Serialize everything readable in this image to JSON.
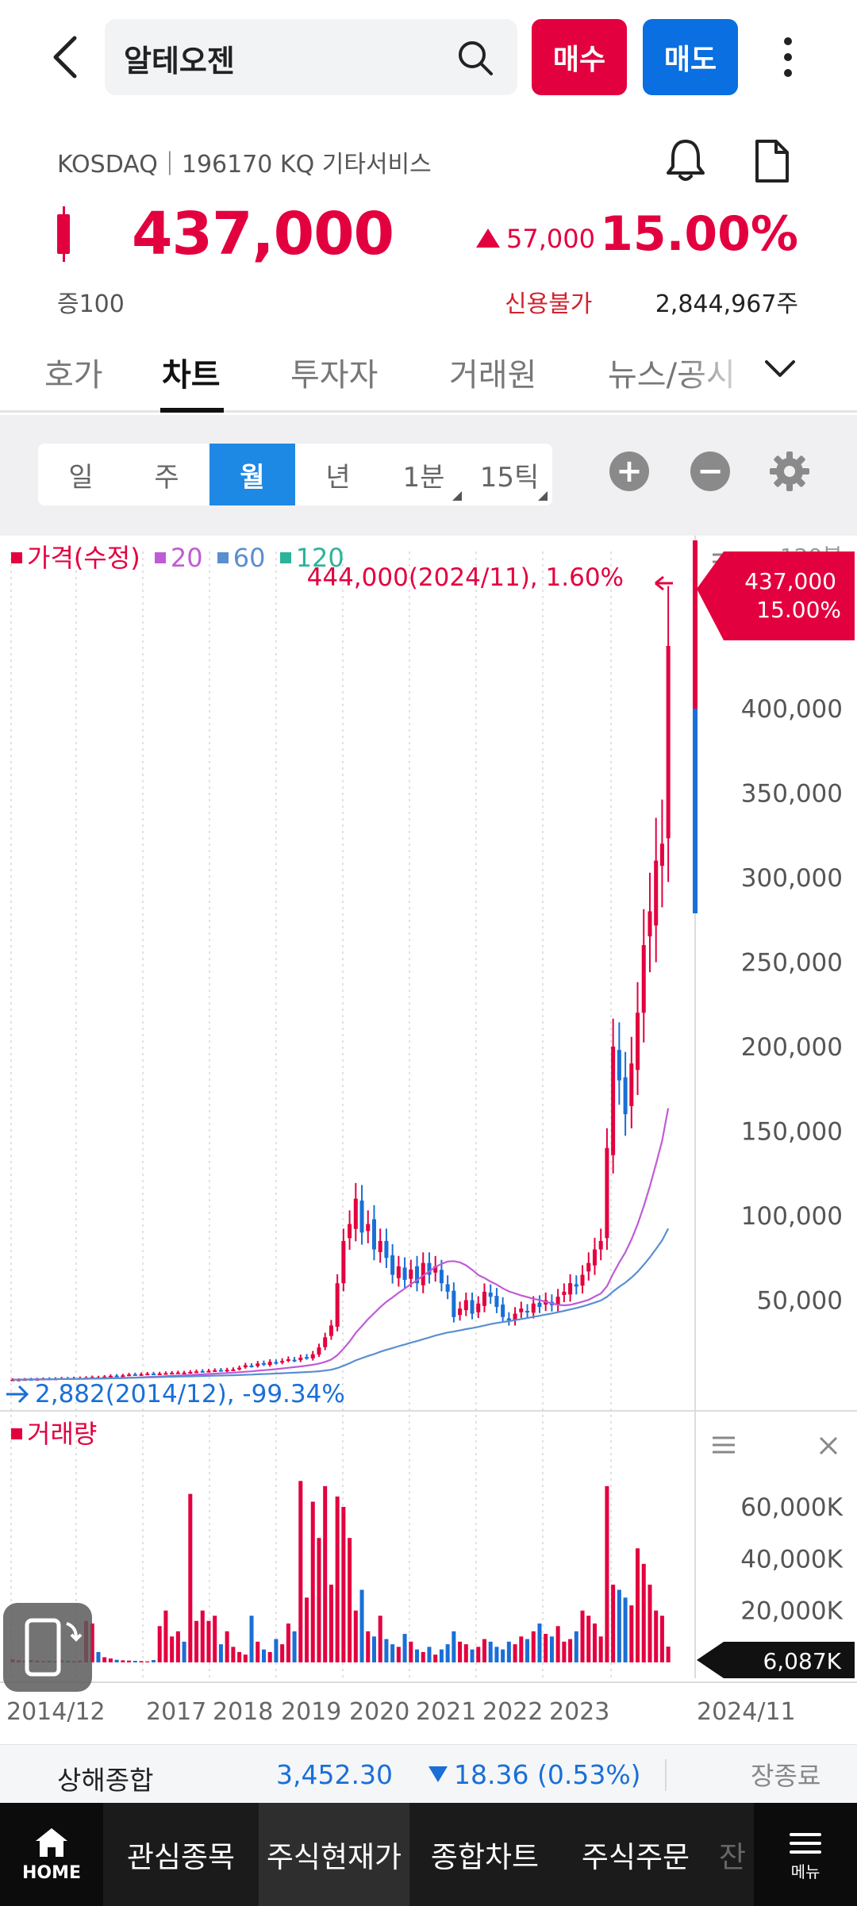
{
  "header": {
    "stock_name": "알테오젠",
    "buy_label": "매수",
    "sell_label": "매도"
  },
  "stock": {
    "market_line": "KOSDAQ｜196170 KQ 기타서비스",
    "price": "437,000",
    "change": "57,000",
    "change_pct": "15.00%",
    "margin": "증100",
    "credit": "신용불가",
    "volume": "2,844,967주",
    "colors": {
      "up": "#e3003f",
      "down": "#1a6fd6"
    }
  },
  "tabs": [
    {
      "label": "호가"
    },
    {
      "label": "차트"
    },
    {
      "label": "투자자"
    },
    {
      "label": "거래원"
    },
    {
      "label": "뉴스/공시"
    }
  ],
  "chart_toolbar": {
    "periods": [
      "일",
      "주",
      "월",
      "년",
      "1분",
      "15틱"
    ],
    "active_period": "월",
    "zoom_in": "+",
    "zoom_out": "−"
  },
  "chart_data": {
    "type": "candlestick",
    "period": "monthly",
    "legend": {
      "price": "가격(수정)",
      "ma20": "20",
      "ma60": "60",
      "ma120": "120",
      "colors": {
        "price": "#e3003f",
        "ma20": "#c05bd6",
        "ma60": "#5a8fd0",
        "ma120": "#2db39a"
      }
    },
    "bars_label": "120봉",
    "volume_label": "거래량",
    "high_annotation": "444,000(2024/11), 1.60%",
    "low_annotation": "2,882(2014/12), -99.34%",
    "current_price_label": "437,000",
    "current_pct_label": "15.00%",
    "current_volume_label": "6,087K",
    "price_axis": [
      "400,000",
      "350,000",
      "300,000",
      "250,000",
      "200,000",
      "150,000",
      "100,000",
      "50,000"
    ],
    "price_axis_values": [
      400000,
      350000,
      300000,
      250000,
      200000,
      150000,
      100000,
      50000
    ],
    "volume_axis": [
      "60,000K",
      "40,000K",
      "20,000K"
    ],
    "volume_axis_values": [
      60000,
      40000,
      20000
    ],
    "x_labels": [
      "2014/12",
      "2017",
      "2018",
      "2019",
      "2020",
      "2021",
      "2022",
      "2023",
      "2024/11"
    ],
    "ylim": [
      0,
      460000
    ],
    "volume_ylim": [
      0,
      75000
    ],
    "price_path": [
      3000,
      3000,
      3200,
      3100,
      3300,
      3500,
      3400,
      3600,
      3800,
      3700,
      3900,
      4000,
      4200,
      4500,
      4400,
      4800,
      5200,
      5000,
      5500,
      6000,
      5800,
      6200,
      6500,
      6300,
      6600,
      6800,
      7000,
      7200,
      7100,
      7500,
      7800,
      8000,
      8200,
      8500,
      8300,
      8800,
      9000,
      10000,
      11500,
      11000,
      12500,
      12000,
      13500,
      13000,
      14000,
      15000,
      14500,
      16000,
      16000,
      18000,
      22000,
      28000,
      35000,
      60000,
      85000,
      95000,
      110000,
      90000,
      95000,
      80000,
      85000,
      75000,
      65000,
      70000,
      62000,
      68000,
      60000,
      72000,
      65000,
      70000,
      60000,
      55000,
      40000,
      45000,
      50000,
      42000,
      48000,
      55000,
      52000,
      46000,
      40000,
      38000,
      42000,
      45000,
      43000,
      48000,
      46000,
      50000,
      47000,
      52000,
      55000,
      60000,
      58000,
      65000,
      72000,
      80000,
      85000,
      140000,
      200000,
      180000,
      160000,
      190000,
      220000,
      260000,
      280000,
      310000,
      320000,
      437000
    ],
    "volume_path": [
      1200,
      800,
      600,
      900,
      700,
      500,
      600,
      400,
      800,
      600,
      500,
      700,
      16000,
      15000,
      4000,
      2000,
      1500,
      1000,
      800,
      700,
      600,
      500,
      400,
      900,
      14000,
      20000,
      10000,
      12000,
      8000,
      65000,
      16000,
      20000,
      16000,
      18000,
      7000,
      12000,
      6000,
      4000,
      3000,
      18000,
      8000,
      5000,
      4000,
      9000,
      7000,
      15000,
      12000,
      70000,
      25000,
      62000,
      48000,
      68000,
      30000,
      64000,
      60000,
      48000,
      20000,
      28000,
      12000,
      10000,
      18000,
      9000,
      7000,
      6000,
      11000,
      8000,
      5000,
      4000,
      6000,
      3000,
      5000,
      7000,
      12000,
      8000,
      7000,
      5000,
      6000,
      9000,
      8000,
      6000,
      5000,
      8000,
      7000,
      10000,
      9000,
      12000,
      15000,
      11000,
      10000,
      14000,
      8000,
      9000,
      12000,
      20000,
      18000,
      15000,
      10000,
      68000,
      30000,
      28000,
      25000,
      22000,
      44000,
      38000,
      30000,
      20000,
      18000,
      6087
    ]
  },
  "ticker": {
    "name": "상해종합",
    "value": "3,452.30",
    "change": "18.36 (0.53%)",
    "close_label": "장종료"
  },
  "bottom_nav": {
    "home": "HOME",
    "items": [
      "관심종목",
      "주식현재가",
      "종합차트",
      "주식주문",
      "잔"
    ],
    "menu": "메뉴"
  }
}
